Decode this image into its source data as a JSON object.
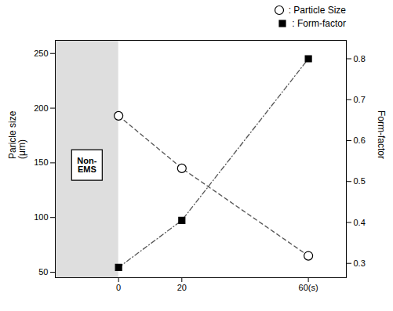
{
  "chart_data": {
    "type": "line",
    "x": [
      0,
      20,
      60
    ],
    "xlim": [
      -20,
      72
    ],
    "xticks": [
      0,
      20,
      {
        "value": 60,
        "label": "60(s)"
      }
    ],
    "ylim": [
      45,
      262
    ],
    "yticks": [
      50,
      100,
      150,
      200,
      250
    ],
    "y2lim": [
      0.265,
      0.845
    ],
    "y2ticks": [
      0.3,
      0.4,
      0.5,
      0.6,
      0.7,
      0.8
    ],
    "ylabel": "Paricle size\n(μm)",
    "y2label": "Form-factor",
    "grid": false,
    "legend": "top right",
    "shaded_regions": [
      {
        "x": [
          -20,
          0
        ],
        "color": "#c8c8c8"
      }
    ],
    "annotations": [
      {
        "text": "Non-\nEMS",
        "x": -10,
        "y": 148
      }
    ],
    "series": [
      {
        "name": ": Particle Size",
        "color": "#555555",
        "values": [
          193,
          145,
          65
        ],
        "marker": "circle",
        "line_style": "dashed"
      },
      {
        "name": ": Form-factor",
        "color": "#555555",
        "values": [
          0.29,
          0.405,
          0.8
        ],
        "marker": "square",
        "line_style": "dashdot",
        "axis": "y2"
      }
    ]
  }
}
